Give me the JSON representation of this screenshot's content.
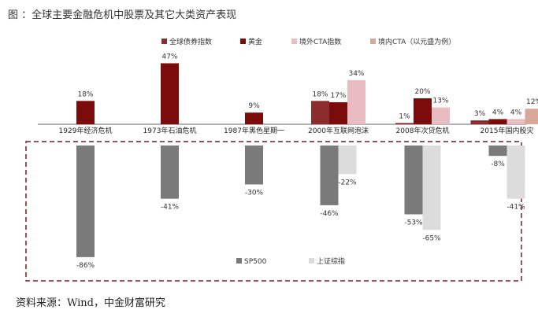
{
  "title": "图 ：全球主要金融危机中股票及其它大类资产表现",
  "source": "资料来源：Wind，中金财富研究",
  "watermark": "",
  "chart_data": {
    "type": "bar",
    "categories": [
      "1929年经济危机",
      "1973年石油危机",
      "1987年黑色星期一",
      "2000年互联网泡沫",
      "2008年次贷危机",
      "2015年国内股灾"
    ],
    "top_series": [
      {
        "name": "全球债券指数",
        "color": "#8b2d2d",
        "values": [
          null,
          null,
          null,
          18,
          1,
          3
        ]
      },
      {
        "name": "黄金",
        "color": "#7a0c0c",
        "values": [
          18,
          47,
          9,
          17,
          20,
          4
        ]
      },
      {
        "name": "境外CTA指数",
        "color": "#e8bcc1",
        "values": [
          null,
          null,
          null,
          34,
          13,
          4
        ]
      },
      {
        "name": "境内CTA（以元盛为例）",
        "color": "#d6a99a",
        "values": [
          null,
          null,
          null,
          null,
          null,
          12
        ]
      }
    ],
    "bottom_series": [
      {
        "name": "SP500",
        "color": "#7a7a7a",
        "values": [
          -86,
          -41,
          -30,
          -46,
          -53,
          -8
        ]
      },
      {
        "name": "上证综指",
        "color": "#dcdcdc",
        "values": [
          null,
          null,
          null,
          -22,
          -65,
          -41
        ]
      }
    ],
    "ylim": [
      -86,
      47
    ],
    "legend": "top-right",
    "grid": false
  }
}
